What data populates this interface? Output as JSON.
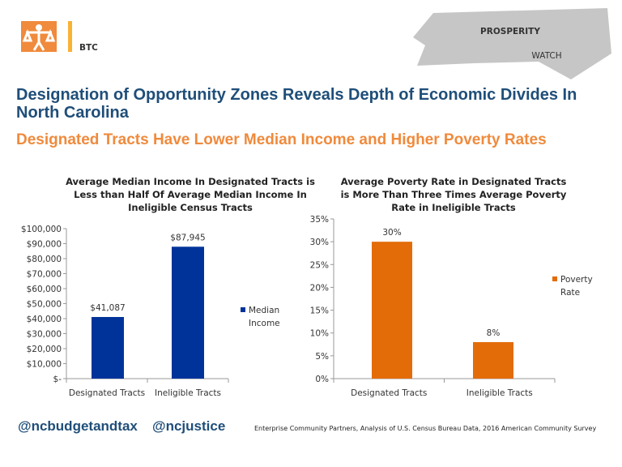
{
  "logos": {
    "left_text": "BTC",
    "right_line1": "PROSPERITY",
    "right_line2": "WATCH"
  },
  "title": "Designation of Opportunity Zones Reveals Depth of Economic Divides In North Carolina",
  "subtitle": "Designated Tracts Have Lower Median Income and Higher Poverty Rates",
  "chart_data": [
    {
      "type": "bar",
      "title": "Average Median Income In Designated Tracts is Less than Half Of Average Median Income In Ineligible Census Tracts",
      "categories": [
        "Designated Tracts",
        "Ineligible Tracts"
      ],
      "series": [
        {
          "name": "Median Income",
          "values": [
            41087,
            87945
          ]
        }
      ],
      "data_labels": [
        "$41,087",
        "$87,945"
      ],
      "ylim": [
        0,
        100000
      ],
      "yticks": [
        "$-",
        "$10,000",
        "$20,000",
        "$30,000",
        "$40,000",
        "$50,000",
        "$60,000",
        "$70,000",
        "$80,000",
        "$90,000",
        "$100,000"
      ],
      "color": "#003399",
      "legend": "right",
      "grid": false
    },
    {
      "type": "bar",
      "title": "Average Poverty Rate in Designated Tracts is More Than Three Times Average Poverty Rate in Ineligible Tracts",
      "categories": [
        "Designated Tracts",
        "Ineligible Tracts"
      ],
      "series": [
        {
          "name": "Poverty Rate",
          "values": [
            30,
            8
          ]
        }
      ],
      "data_labels": [
        "30%",
        "8%"
      ],
      "ylim": [
        0,
        35
      ],
      "yticks": [
        "0%",
        "5%",
        "10%",
        "15%",
        "20%",
        "25%",
        "30%",
        "35%"
      ],
      "color": "#e36c09",
      "legend": "right",
      "grid": false
    }
  ],
  "footer": {
    "handle1": "@ncbudgetandtax",
    "handle2": "@ncjustice",
    "source": "Enterprise Community Partners, Analysis of U.S. Census Bureau Data, 2016 American Community Survey"
  }
}
